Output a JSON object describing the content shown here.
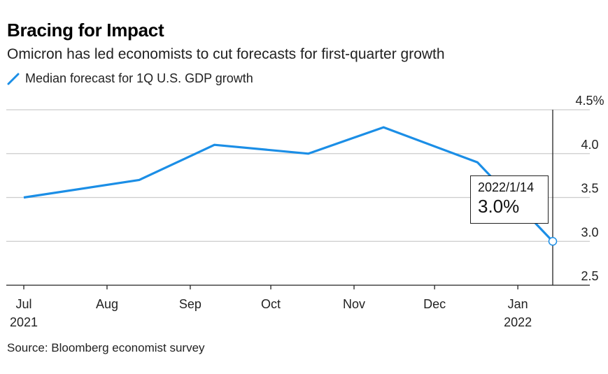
{
  "title": "Bracing for Impact",
  "subtitle": "Omicron has led economists to cut forecasts for first-quarter growth",
  "source": "Source: Bloomberg economist survey",
  "tooltip": {
    "date": "2022/1/14",
    "value": "3.0%"
  },
  "colors": {
    "line": "#1b8ee6",
    "grid": "#cccccc",
    "axis": "#222222"
  },
  "chart_data": {
    "type": "line",
    "series": [
      {
        "name": "Median forecast for 1Q U.S. GDP growth",
        "x": [
          "2021-07-01",
          "2021-08-13",
          "2021-09-10",
          "2021-10-15",
          "2021-11-12",
          "2021-12-17",
          "2022-01-14"
        ],
        "values": [
          3.5,
          3.7,
          4.1,
          4.0,
          4.3,
          3.9,
          3.0
        ]
      }
    ],
    "x_ticks": [
      {
        "date": "2021-07-01",
        "label": "Jul",
        "year": "2021"
      },
      {
        "date": "2021-08-01",
        "label": "Aug",
        "year": ""
      },
      {
        "date": "2021-09-01",
        "label": "Sep",
        "year": ""
      },
      {
        "date": "2021-10-01",
        "label": "Oct",
        "year": ""
      },
      {
        "date": "2021-11-01",
        "label": "Nov",
        "year": ""
      },
      {
        "date": "2021-12-01",
        "label": "Dec",
        "year": ""
      },
      {
        "date": "2022-01-01",
        "label": "Jan",
        "year": "2022"
      }
    ],
    "y_ticks": [
      {
        "value": 4.5,
        "label": "4.5%"
      },
      {
        "value": 4.0,
        "label": "4.0"
      },
      {
        "value": 3.5,
        "label": "3.5"
      },
      {
        "value": 3.0,
        "label": "3.0"
      },
      {
        "value": 2.5,
        "label": "2.5"
      }
    ],
    "ylim": [
      2.5,
      4.5
    ],
    "xlim": [
      "2021-07-01",
      "2022-01-14"
    ],
    "grid": true,
    "legend_position": "top-left"
  }
}
